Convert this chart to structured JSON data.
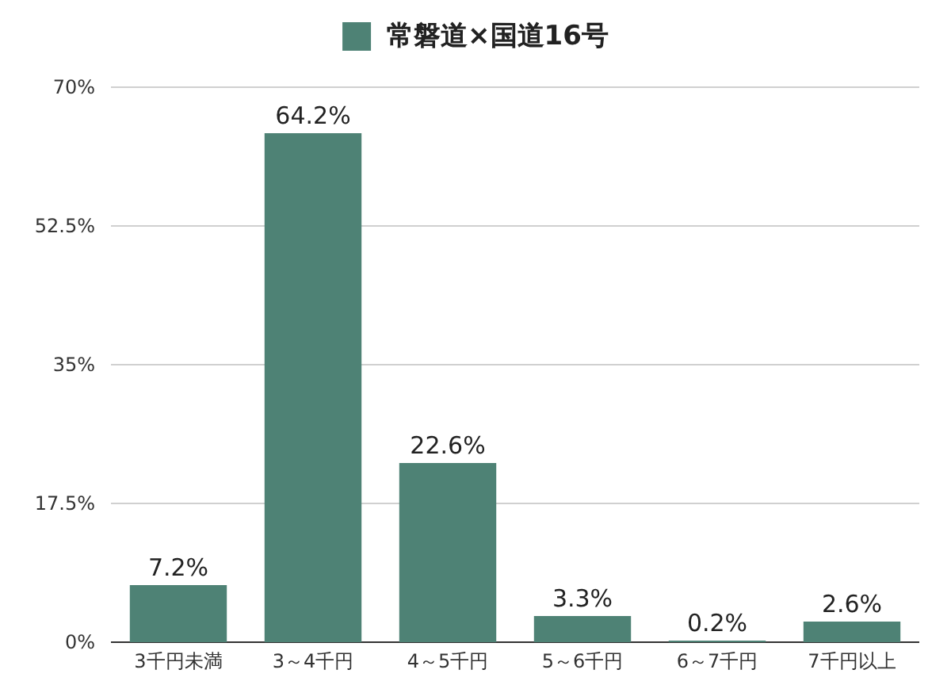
{
  "chart_data": {
    "type": "bar",
    "categories": [
      "3千円未満",
      "3～4千円",
      "4～5千円",
      "5～6千円",
      "6～7千円",
      "7千円以上"
    ],
    "series": [
      {
        "name": "常磐道×国道16号",
        "color": "#4e8275",
        "values": [
          7.2,
          64.2,
          22.6,
          3.3,
          0.2,
          2.6
        ]
      }
    ],
    "value_labels": [
      "7.2%",
      "64.2%",
      "22.6%",
      "3.3%",
      "0.2%",
      "2.6%"
    ],
    "ylim": [
      0,
      70
    ],
    "yticks": [
      {
        "value": 0,
        "label": "0%"
      },
      {
        "value": 17.5,
        "label": "17.5%"
      },
      {
        "value": 35,
        "label": "35%"
      },
      {
        "value": 52.5,
        "label": "52.5%"
      },
      {
        "value": 70,
        "label": "70%"
      }
    ],
    "grid": "y",
    "legend": "top"
  }
}
